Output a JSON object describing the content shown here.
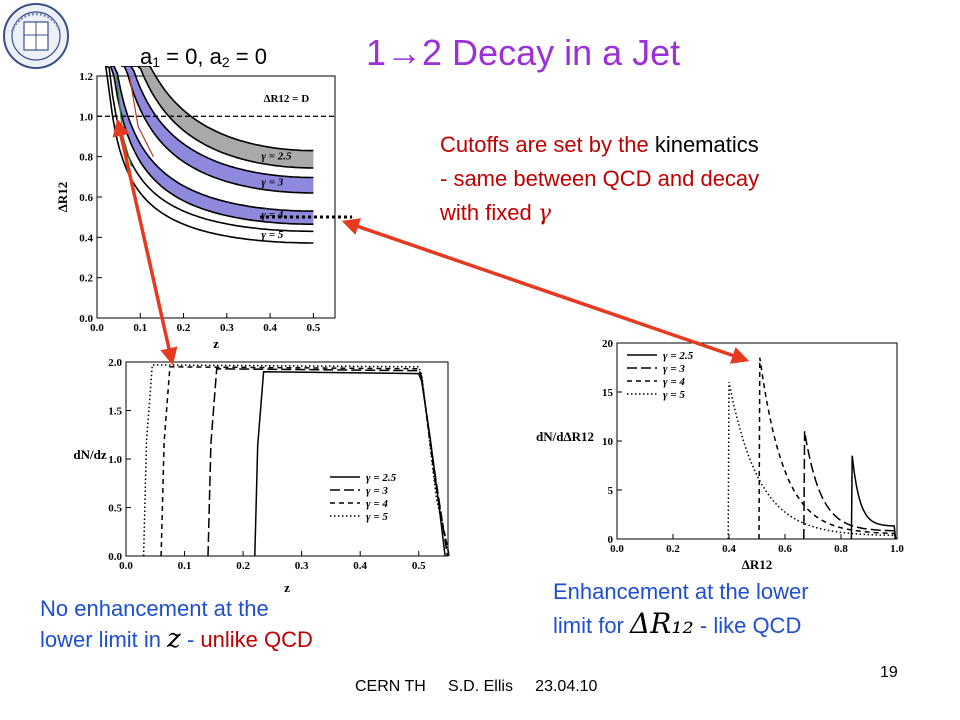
{
  "slide": {
    "params_text": {
      "a1": "a",
      "s1": "1",
      "mid": " = 0, a",
      "s2": "2",
      "end": " = 0"
    },
    "title": "1→2 Decay in a Jet",
    "cutoffs": {
      "part1": "Cutoffs are set by the ",
      "part2": "kinematics",
      "line2": "- same between QCD and decay",
      "line3": "with fixed ",
      "gamma": "γ"
    },
    "caption_left": {
      "line1": "No enhancement at the",
      "line2a": "lower limit in ",
      "z": "z",
      "line2b": " - ",
      "line2c": "unlike QCD"
    },
    "caption_right": {
      "line1": "Enhancement at the lower",
      "line2a": "limit for ",
      "math": "ΔR₁₂",
      "line2b": " - like QCD"
    },
    "footer": "CERN TH     S.D. Ellis     23.04.10",
    "page_number": "19",
    "colors": {
      "title": "#9b30d9",
      "red": "#c00000",
      "blue": "#1f4fd1",
      "arrow": "#e53a20"
    }
  },
  "chart_data": [
    {
      "type": "line",
      "title": "",
      "xlabel": "z",
      "ylabel": "ΔR12",
      "xlim": [
        0.0,
        0.55
      ],
      "ylim": [
        0.0,
        1.2
      ],
      "x_ticks": [
        "0.0",
        "0.1",
        "0.2",
        "0.3",
        "0.4",
        "0.5"
      ],
      "y_ticks": [
        "0.0",
        "0.2",
        "0.4",
        "0.6",
        "0.8",
        "1.0",
        "1.2"
      ],
      "reference_line": {
        "y": 1.0,
        "label": "ΔR12 = D"
      },
      "legend_labels": [
        "γ = 2.5",
        "γ = 3",
        "γ = 4",
        "γ = 5"
      ],
      "gamma_values": [
        2.5,
        3,
        4,
        5
      ]
    },
    {
      "type": "line",
      "title": "",
      "xlabel": "z",
      "ylabel": "dN/dz",
      "xlim": [
        0.0,
        0.55
      ],
      "ylim": [
        0.0,
        2.0
      ],
      "x_ticks": [
        "0.0",
        "0.1",
        "0.2",
        "0.3",
        "0.4",
        "0.5"
      ],
      "y_ticks": [
        "0.0",
        "0.5",
        "1.0",
        "1.5",
        "2.0"
      ],
      "legend": "bottom-right",
      "series": [
        {
          "name": "γ = 2.5",
          "z_min": 0.23,
          "z_max": 0.5,
          "plateau": 1.9
        },
        {
          "name": "γ = 3",
          "z_min": 0.15,
          "z_max": 0.5,
          "plateau": 1.93
        },
        {
          "name": "γ = 4",
          "z_min": 0.07,
          "z_max": 0.5,
          "plateau": 1.95
        },
        {
          "name": "γ = 5",
          "z_min": 0.04,
          "z_max": 0.5,
          "plateau": 1.97
        }
      ]
    },
    {
      "type": "line",
      "title": "",
      "xlabel": "ΔR12",
      "ylabel": "dN/dΔR12",
      "xlim": [
        0.0,
        1.0
      ],
      "ylim": [
        0,
        20
      ],
      "x_ticks": [
        "0.0",
        "0.2",
        "0.4",
        "0.6",
        "0.8",
        "1.0"
      ],
      "y_ticks": [
        "0",
        "5",
        "10",
        "15",
        "20"
      ],
      "legend": "top-left",
      "series": [
        {
          "name": "γ = 2.5",
          "peak_x": 0.84,
          "peak_y": 8.5,
          "end_y": 1.3
        },
        {
          "name": "γ = 3",
          "peak_x": 0.67,
          "peak_y": 11.0,
          "end_y": 0.8
        },
        {
          "name": "γ = 4",
          "peak_x": 0.51,
          "peak_y": 18.5,
          "end_y": 0.5
        },
        {
          "name": "γ = 5",
          "peak_x": 0.4,
          "peak_y": 16.0,
          "end_y": 0.3
        }
      ]
    }
  ]
}
